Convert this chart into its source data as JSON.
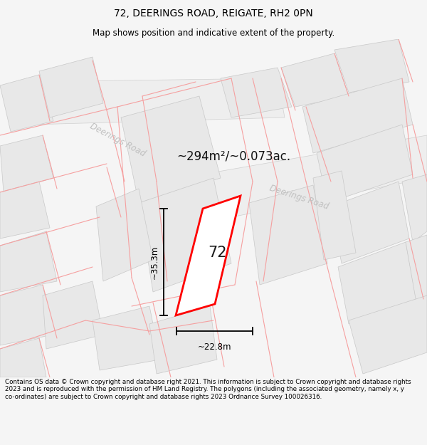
{
  "title": "72, DEERINGS ROAD, REIGATE, RH2 0PN",
  "subtitle": "Map shows position and indicative extent of the property.",
  "area_text": "~294m²/~0.073ac.",
  "number_label": "72",
  "dim_width": "~22.8m",
  "dim_height": "~35.3m",
  "road_label_1": "Deerings Road",
  "road_label_2": "Deerings Road",
  "footer": "Contains OS data © Crown copyright and database right 2021. This information is subject to Crown copyright and database rights 2023 and is reproduced with the permission of HM Land Registry. The polygons (including the associated geometry, namely x, y co-ordinates) are subject to Crown copyright and database rights 2023 Ordnance Survey 100026316.",
  "bg_color": "#f5f5f5",
  "map_bg": "#ffffff",
  "building_fill": "#e8e8e8",
  "building_edge": "#c8c8c8",
  "road_fill": "#eeeeee",
  "road_edge": "#d0d0d0",
  "highlight_edge": "#ff0000",
  "highlight_fill": "#ffffff",
  "dim_line_color": "#000000",
  "road_text_color": "#c0c0c0",
  "boundary_color": "#f5a0a0",
  "title_color": "#000000",
  "footer_color": "#000000"
}
